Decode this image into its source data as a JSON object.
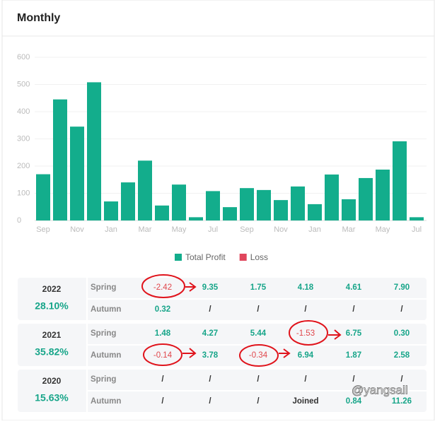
{
  "header": {
    "title": "Monthly"
  },
  "chart_data": {
    "type": "bar",
    "categories": [
      "Sep",
      null,
      "Nov",
      null,
      "Jan",
      null,
      "Mar",
      null,
      "May",
      null,
      "Jul",
      null,
      "Sep",
      null,
      "Nov",
      null,
      "Jan",
      null,
      "Mar",
      null,
      "May",
      null,
      "Jul"
    ],
    "series": [
      {
        "name": "Total Profit",
        "color": "#13ad8c",
        "values": [
          170,
          445,
          345,
          508,
          70,
          140,
          220,
          55,
          132,
          12,
          108,
          49,
          119,
          112,
          75,
          125,
          60,
          169,
          78,
          156,
          187,
          291,
          12
        ]
      },
      {
        "name": "Loss",
        "color": "#e0465c",
        "values": [
          null,
          null,
          null,
          null,
          null,
          null,
          null,
          null,
          null,
          null,
          null,
          null,
          null,
          null,
          null,
          null,
          null,
          null,
          null,
          null,
          null,
          null,
          null
        ]
      }
    ],
    "ylim": [
      0,
      600
    ],
    "yticks": [
      0,
      100,
      200,
      300,
      400,
      500,
      600
    ],
    "grid": true,
    "legend": "bottom"
  },
  "table": {
    "rows": [
      {
        "year": "2022",
        "percent": "28.10%",
        "seasons": [
          {
            "name": "Spring",
            "cells": [
              "-2.42",
              "9.35",
              "1.75",
              "4.18",
              "4.61",
              "7.90"
            ]
          },
          {
            "name": "Autumn",
            "cells": [
              "0.32",
              "/",
              "/",
              "/",
              "/",
              "/"
            ]
          }
        ]
      },
      {
        "year": "2021",
        "percent": "35.82%",
        "seasons": [
          {
            "name": "Spring",
            "cells": [
              "1.48",
              "4.27",
              "5.44",
              "-1.53",
              "6.75",
              "0.30"
            ]
          },
          {
            "name": "Autumn",
            "cells": [
              "-0.14",
              "3.78",
              "-0.34",
              "6.94",
              "1.87",
              "2.58"
            ]
          }
        ]
      },
      {
        "year": "2020",
        "percent": "15.63%",
        "seasons": [
          {
            "name": "Spring",
            "cells": [
              "/",
              "/",
              "/",
              "/",
              "/",
              "/"
            ]
          },
          {
            "name": "Autumn",
            "cells": [
              "/",
              "/",
              "/",
              "Joined",
              "0.84",
              "11.26"
            ]
          }
        ]
      }
    ]
  },
  "watermark": "@yangsail"
}
